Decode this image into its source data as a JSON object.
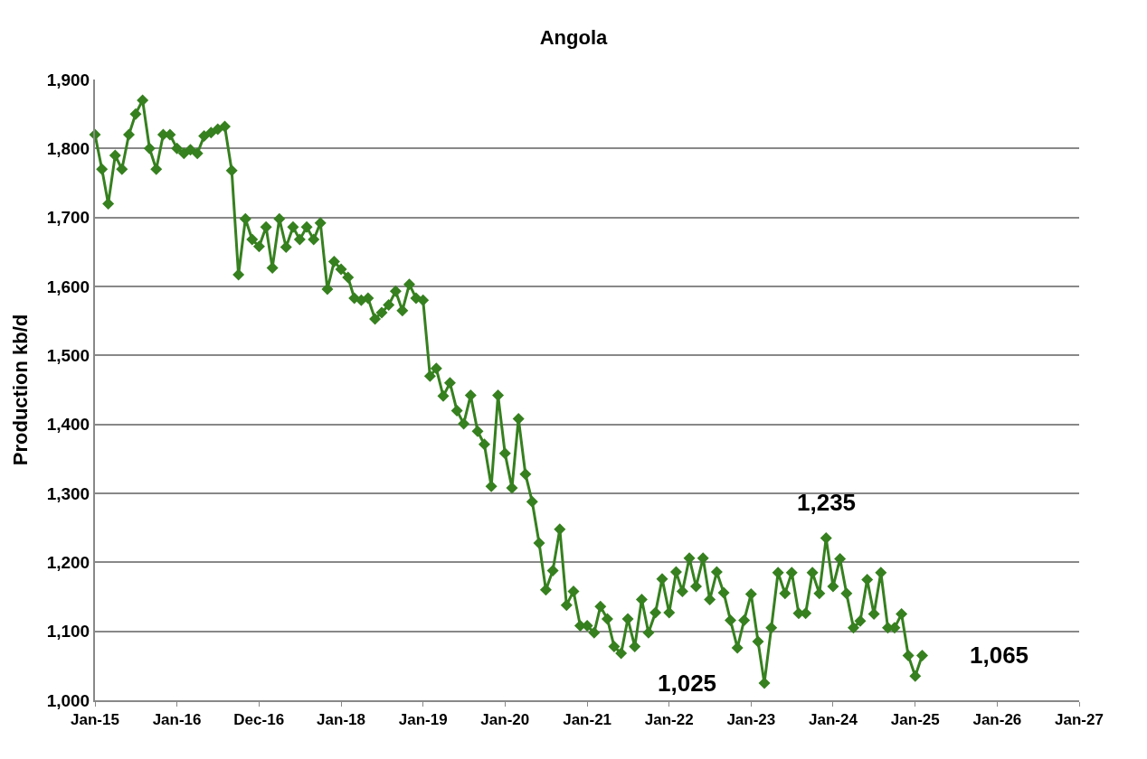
{
  "chart_data": {
    "type": "line",
    "title": "Angola",
    "ylabel": "Production kb/d",
    "x": [
      "2015-01",
      "2015-02",
      "2015-03",
      "2015-04",
      "2015-05",
      "2015-06",
      "2015-07",
      "2015-08",
      "2015-09",
      "2015-10",
      "2015-11",
      "2015-12",
      "2016-01",
      "2016-02",
      "2016-03",
      "2016-04",
      "2016-05",
      "2016-06",
      "2016-07",
      "2016-08",
      "2016-09",
      "2016-10",
      "2016-11",
      "2016-12",
      "2017-01",
      "2017-02",
      "2017-03",
      "2017-04",
      "2017-05",
      "2017-06",
      "2017-07",
      "2017-08",
      "2017-09",
      "2017-10",
      "2017-11",
      "2017-12",
      "2018-01",
      "2018-02",
      "2018-03",
      "2018-04",
      "2018-05",
      "2018-06",
      "2018-07",
      "2018-08",
      "2018-09",
      "2018-10",
      "2018-11",
      "2018-12",
      "2019-01",
      "2019-02",
      "2019-03",
      "2019-04",
      "2019-05",
      "2019-06",
      "2019-07",
      "2019-08",
      "2019-09",
      "2019-10",
      "2019-11",
      "2019-12",
      "2020-01",
      "2020-02",
      "2020-03",
      "2020-04",
      "2020-05",
      "2020-06",
      "2020-07",
      "2020-08",
      "2020-09",
      "2020-10",
      "2020-11",
      "2020-12",
      "2021-01",
      "2021-02",
      "2021-03",
      "2021-04",
      "2021-05",
      "2021-06",
      "2021-07",
      "2021-08",
      "2021-09",
      "2021-10",
      "2021-11",
      "2021-12",
      "2022-01",
      "2022-02",
      "2022-03",
      "2022-04",
      "2022-05",
      "2022-06",
      "2022-07",
      "2022-08",
      "2022-09",
      "2022-10",
      "2022-11",
      "2022-12",
      "2023-01",
      "2023-02",
      "2023-03",
      "2023-04",
      "2023-05",
      "2023-06",
      "2023-07",
      "2023-08",
      "2023-09",
      "2023-10",
      "2023-11",
      "2023-12",
      "2024-01",
      "2024-02",
      "2024-03",
      "2024-04",
      "2024-05",
      "2024-06",
      "2024-07",
      "2024-08",
      "2024-09",
      "2024-10",
      "2024-11",
      "2024-12",
      "2025-01",
      "2025-02"
    ],
    "series": [
      {
        "color": "#36801f",
        "values": [
          1820,
          1770,
          1720,
          1790,
          1770,
          1820,
          1850,
          1870,
          1800,
          1770,
          1820,
          1820,
          1800,
          1793,
          1798,
          1793,
          1818,
          1823,
          1828,
          1832,
          1768,
          1617,
          1698,
          1668,
          1658,
          1686,
          1627,
          1698,
          1657,
          1686,
          1668,
          1686,
          1668,
          1692,
          1596,
          1636,
          1625,
          1613,
          1583,
          1580,
          1583,
          1553,
          1562,
          1573,
          1593,
          1565,
          1603,
          1583,
          1580,
          1470,
          1481,
          1441,
          1460,
          1420,
          1401,
          1442,
          1390,
          1371,
          1310,
          1442,
          1358,
          1308,
          1408,
          1328,
          1288,
          1228,
          1160,
          1188,
          1248,
          1138,
          1158,
          1108,
          1108,
          1098,
          1136,
          1118,
          1078,
          1068,
          1118,
          1078,
          1146,
          1098,
          1127,
          1176,
          1127,
          1186,
          1158,
          1206,
          1165,
          1206,
          1146,
          1186,
          1156,
          1116,
          1076,
          1116,
          1154,
          1085,
          1025,
          1105,
          1185,
          1155,
          1185,
          1126,
          1126,
          1185,
          1155,
          1235,
          1165,
          1205,
          1155,
          1105,
          1115,
          1175,
          1125,
          1185,
          1105,
          1105,
          1125,
          1065,
          1035,
          1065
        ]
      }
    ],
    "annotations": [
      {
        "text": "1,235",
        "x": "2023-12",
        "y": 1235
      },
      {
        "text": "1,025",
        "x": "2023-03",
        "y": 1025
      },
      {
        "text": "1,065",
        "x": "2025-02",
        "y": 1065
      }
    ],
    "xlim": [
      "2015-01-01",
      "2027-01-01"
    ],
    "xticks": [
      {
        "value": "2015-01-01",
        "label": "Jan-15"
      },
      {
        "value": "2016-01-01",
        "label": "Jan-16"
      },
      {
        "value": "2016-12-31",
        "label": "Dec-16"
      },
      {
        "value": "2018-01-01",
        "label": "Jan-18"
      },
      {
        "value": "2019-01-01",
        "label": "Jan-19"
      },
      {
        "value": "2020-01-01",
        "label": "Jan-20"
      },
      {
        "value": "2021-01-01",
        "label": "Jan-21"
      },
      {
        "value": "2022-01-01",
        "label": "Jan-22"
      },
      {
        "value": "2023-01-01",
        "label": "Jan-23"
      },
      {
        "value": "2024-01-01",
        "label": "Jan-24"
      },
      {
        "value": "2025-01-01",
        "label": "Jan-25"
      },
      {
        "value": "2026-01-01",
        "label": "Jan-26"
      },
      {
        "value": "2027-01-01",
        "label": "Jan-27"
      }
    ],
    "ylim": [
      1000,
      1900
    ],
    "yticks": [
      {
        "value": 1000,
        "label": "1,000"
      },
      {
        "value": 1100,
        "label": "1,100"
      },
      {
        "value": 1200,
        "label": "1,200"
      },
      {
        "value": 1300,
        "label": "1,300"
      },
      {
        "value": 1400,
        "label": "1,400"
      },
      {
        "value": 1500,
        "label": "1,500"
      },
      {
        "value": 1600,
        "label": "1,600"
      },
      {
        "value": 1700,
        "label": "1,700"
      },
      {
        "value": 1800,
        "label": "1,800"
      },
      {
        "value": 1900,
        "label": "1,900"
      }
    ],
    "grid": "y",
    "marker": "diamond",
    "line_style": "solid"
  }
}
